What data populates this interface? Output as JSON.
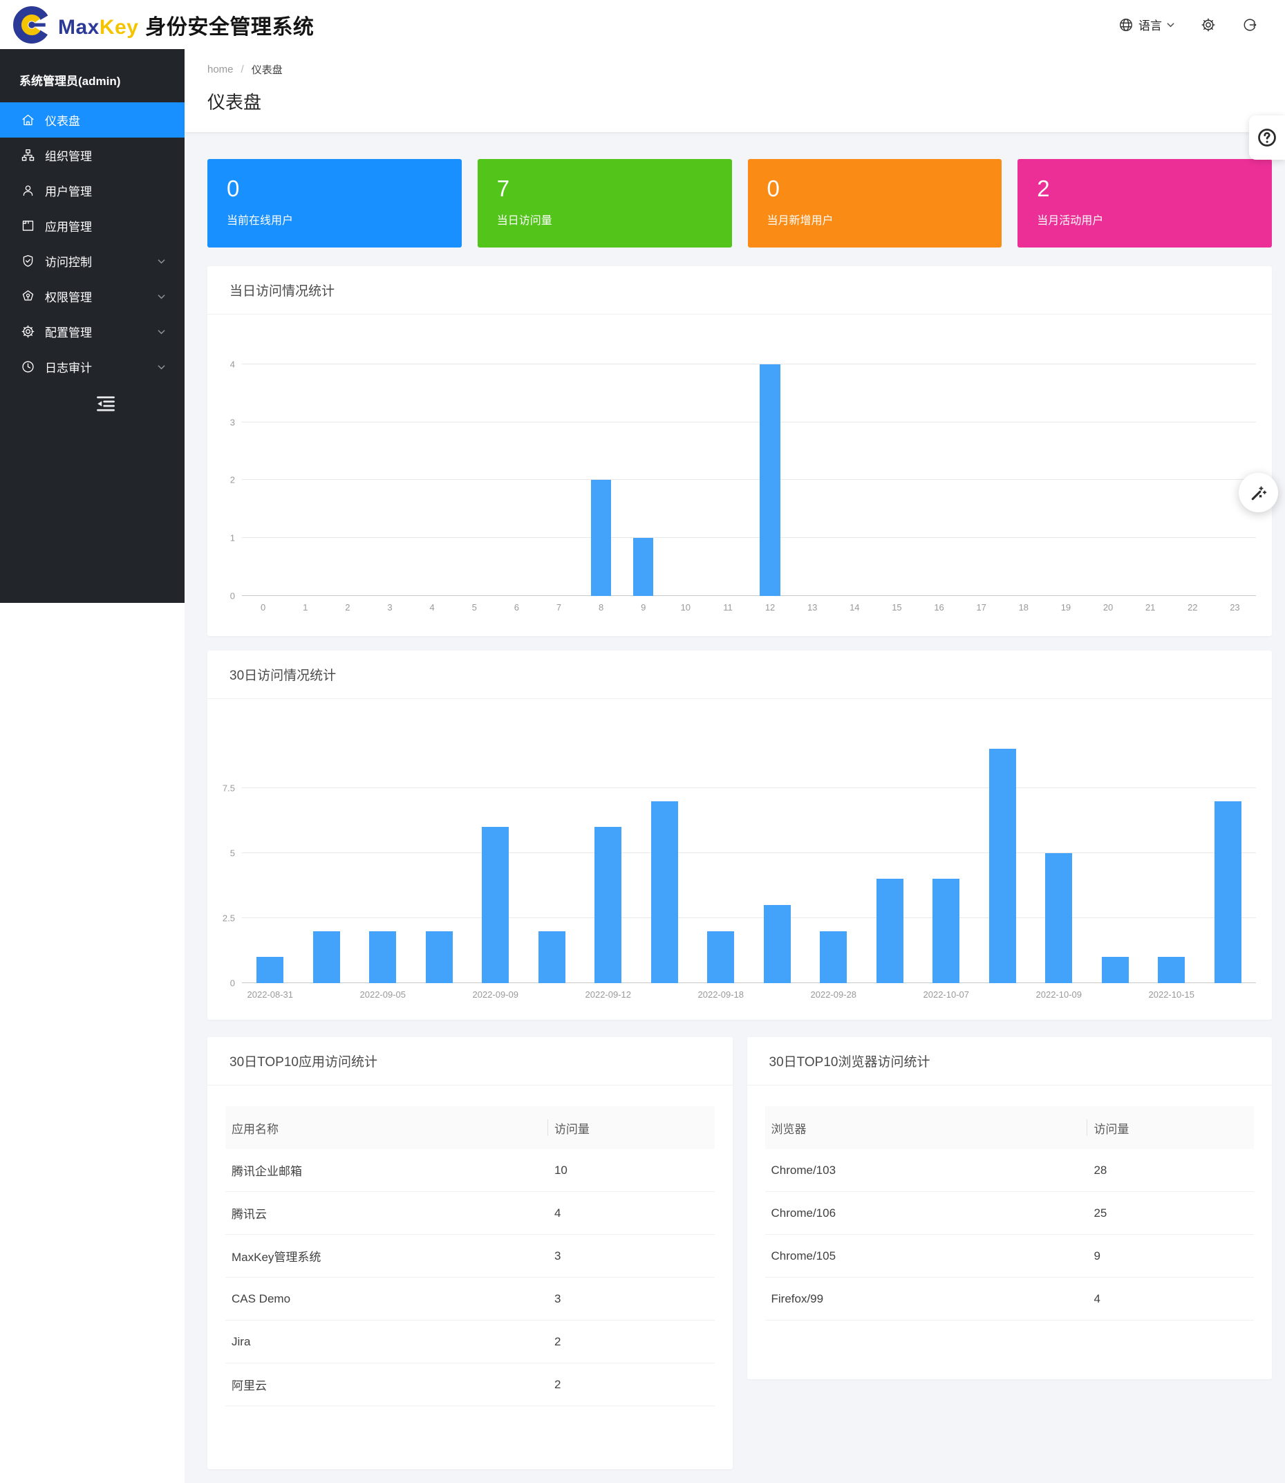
{
  "header": {
    "logo_text_max": "Max",
    "logo_text_key": "Key",
    "app_title": "身份安全管理系统",
    "language_label": "语言"
  },
  "sidebar": {
    "user": "系统管理员(admin)",
    "items": [
      {
        "id": "dashboard",
        "label": "仪表盘",
        "icon": "home-icon",
        "active": true,
        "expandable": false
      },
      {
        "id": "organization",
        "label": "组织管理",
        "icon": "org-icon",
        "active": false,
        "expandable": false
      },
      {
        "id": "users",
        "label": "用户管理",
        "icon": "user-icon",
        "active": false,
        "expandable": false
      },
      {
        "id": "applications",
        "label": "应用管理",
        "icon": "app-icon",
        "active": false,
        "expandable": false
      },
      {
        "id": "access-control",
        "label": "访问控制",
        "icon": "shield-check-icon",
        "active": false,
        "expandable": true
      },
      {
        "id": "permissions",
        "label": "权限管理",
        "icon": "permission-icon",
        "active": false,
        "expandable": true
      },
      {
        "id": "configuration",
        "label": "配置管理",
        "icon": "gear-icon",
        "active": false,
        "expandable": true
      },
      {
        "id": "audit",
        "label": "日志审计",
        "icon": "clock-icon",
        "active": false,
        "expandable": true
      }
    ]
  },
  "breadcrumb": {
    "home": "home",
    "separator": "/",
    "current": "仪表盘"
  },
  "page_title": "仪表盘",
  "stats": [
    {
      "value": "0",
      "label": "当前在线用户",
      "color": "#1890ff"
    },
    {
      "value": "7",
      "label": "当日访问量",
      "color": "#52c41a"
    },
    {
      "value": "0",
      "label": "当月新增用户",
      "color": "#fa8c16"
    },
    {
      "value": "2",
      "label": "当月活动用户",
      "color": "#eb2f96"
    }
  ],
  "chart_data": [
    {
      "type": "bar",
      "title": "当日访问情况统计",
      "categories": [
        "0",
        "1",
        "2",
        "3",
        "4",
        "5",
        "6",
        "7",
        "8",
        "9",
        "10",
        "11",
        "12",
        "13",
        "14",
        "15",
        "16",
        "17",
        "18",
        "19",
        "20",
        "21",
        "22",
        "23"
      ],
      "values": [
        0,
        0,
        0,
        0,
        0,
        0,
        0,
        0,
        2,
        1,
        0,
        0,
        4,
        0,
        0,
        0,
        0,
        0,
        0,
        0,
        0,
        0,
        0,
        0
      ],
      "xlabel": "hour",
      "ylabel": "",
      "ylim": [
        0,
        4.2
      ],
      "yticks": [
        0,
        1,
        2,
        3,
        4
      ],
      "grid": true,
      "legend": "none",
      "bar_color": "#43a3fa"
    },
    {
      "type": "bar",
      "title": "30日访问情况统计",
      "categories": [
        "2022-08-31",
        "",
        "2022-09-05",
        "",
        "2022-09-09",
        "",
        "2022-09-12",
        "",
        "2022-09-18",
        "",
        "2022-09-28",
        "",
        "2022-10-07",
        "",
        "2022-10-09",
        "",
        "2022-10-15",
        ""
      ],
      "values": [
        1,
        2,
        2,
        2,
        6,
        2,
        6,
        7,
        2,
        3,
        2,
        4,
        4,
        9,
        5,
        1,
        1,
        7
      ],
      "xlabel": "date",
      "ylabel": "",
      "ylim": [
        0,
        9.3
      ],
      "yticks": [
        0,
        2.5,
        5,
        7.5
      ],
      "grid": true,
      "legend": "none",
      "bar_color": "#43a3fa"
    }
  ],
  "tables": [
    {
      "title": "30日TOP10应用访问统计",
      "columns": [
        "应用名称",
        "访问量"
      ],
      "rows": [
        [
          "腾讯企业邮箱",
          "10"
        ],
        [
          "腾讯云",
          "4"
        ],
        [
          "MaxKey管理系统",
          "3"
        ],
        [
          "CAS Demo",
          "3"
        ],
        [
          "Jira",
          "2"
        ],
        [
          "阿里云",
          "2"
        ]
      ]
    },
    {
      "title": "30日TOP10浏览器访问统计",
      "columns": [
        "浏览器",
        "访问量"
      ],
      "rows": [
        [
          "Chrome/103",
          "28"
        ],
        [
          "Chrome/106",
          "25"
        ],
        [
          "Chrome/105",
          "9"
        ],
        [
          "Firefox/99",
          "4"
        ]
      ]
    }
  ],
  "colors": {
    "accent": "#1890ff",
    "sidebar_bg": "#22262b",
    "content_bg": "#f4f5f8",
    "bar": "#43a3fa",
    "stat_blue": "#1890ff",
    "stat_green": "#52c41a",
    "stat_orange": "#fa8c16",
    "stat_pink": "#eb2f96",
    "logo_blue": "#2b3a96",
    "logo_yellow": "#f5c400"
  }
}
